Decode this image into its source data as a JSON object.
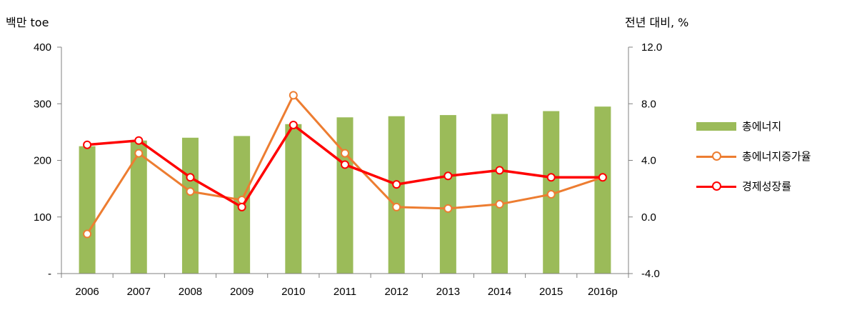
{
  "chart_data": {
    "type": "bar+line",
    "categories": [
      "2006",
      "2007",
      "2008",
      "2009",
      "2010",
      "2011",
      "2012",
      "2013",
      "2014",
      "2015",
      "2016p"
    ],
    "series": [
      {
        "name": "총에너지",
        "type": "bar",
        "axis": "left",
        "values": [
          225,
          235,
          240,
          243,
          264,
          276,
          278,
          280,
          282,
          287,
          295
        ]
      },
      {
        "name": "총에너지증가율",
        "type": "line",
        "axis": "right",
        "values": [
          -1.2,
          4.5,
          1.8,
          1.2,
          8.6,
          4.5,
          0.7,
          0.6,
          0.9,
          1.6,
          2.8
        ]
      },
      {
        "name": "경제성장률",
        "type": "line",
        "axis": "right",
        "values": [
          5.1,
          5.4,
          2.8,
          0.7,
          6.5,
          3.7,
          2.3,
          2.9,
          3.3,
          2.8,
          2.8
        ]
      }
    ],
    "left_axis": {
      "label": "백만 toe",
      "ylim": [
        0,
        400
      ],
      "ticks": [
        {
          "v": 0,
          "t": "-"
        },
        {
          "v": 100,
          "t": "100"
        },
        {
          "v": 200,
          "t": "200"
        },
        {
          "v": 300,
          "t": "300"
        },
        {
          "v": 400,
          "t": "400"
        }
      ]
    },
    "right_axis": {
      "label": "전년 대비, %",
      "ylim": [
        -4,
        12
      ],
      "ticks": [
        {
          "v": -4,
          "t": "-4.0"
        },
        {
          "v": 0,
          "t": "0.0"
        },
        {
          "v": 4,
          "t": "4.0"
        },
        {
          "v": 8,
          "t": "8.0"
        },
        {
          "v": 12,
          "t": "12.0"
        }
      ]
    },
    "colors": {
      "bar": "#9bbb59",
      "growth_energy": "#ed7d31",
      "growth_gdp": "#ff0000"
    },
    "grid": false,
    "legend_position": "right"
  }
}
